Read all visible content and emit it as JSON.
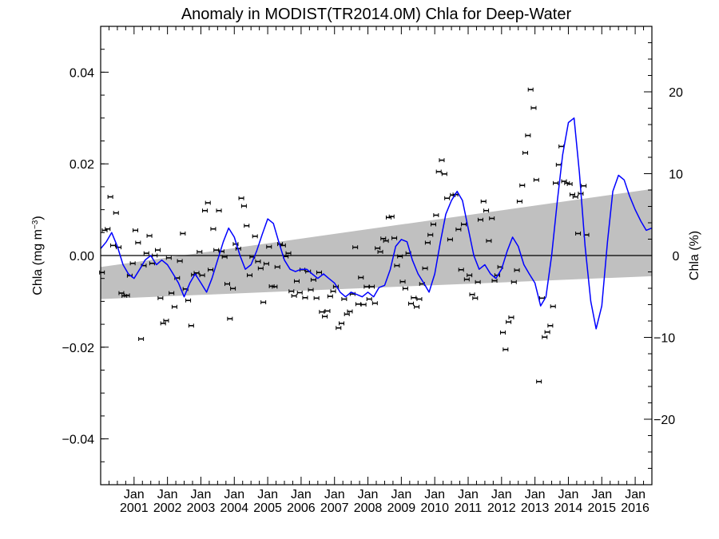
{
  "chart_data": {
    "type": "scatter",
    "title": "Anomaly in MODIST(TR2014.0M) Chla for Deep-Water",
    "ylabel_left": "Chla (mg m",
    "ylabel_left_superscript": "−3",
    "ylabel_left_close": ")",
    "ylabel_right": "Chla (%)",
    "xlabel": "",
    "xlim": [
      2000.0,
      2016.5
    ],
    "ylim": [
      -0.05,
      0.05
    ],
    "y2lim": [
      -28,
      28
    ],
    "yticks": [
      {
        "value": -0.04,
        "label": "−0.04"
      },
      {
        "value": -0.02,
        "label": "−0.02"
      },
      {
        "value": 0.0,
        "label": "0.00"
      },
      {
        "value": 0.02,
        "label": "0.02"
      },
      {
        "value": 0.04,
        "label": "0.04"
      }
    ],
    "y2ticks": [
      {
        "value": -20,
        "label": "−20"
      },
      {
        "value": -10,
        "label": "−10"
      },
      {
        "value": 0,
        "label": "0"
      },
      {
        "value": 10,
        "label": "10"
      },
      {
        "value": 20,
        "label": "20"
      }
    ],
    "xticks": [
      {
        "value": 2001,
        "month": "Jan",
        "year": "2001"
      },
      {
        "value": 2002,
        "month": "Jan",
        "year": "2002"
      },
      {
        "value": 2003,
        "month": "Jan",
        "year": "2003"
      },
      {
        "value": 2004,
        "month": "Jan",
        "year": "2004"
      },
      {
        "value": 2005,
        "month": "Jan",
        "year": "2005"
      },
      {
        "value": 2006,
        "month": "Jan",
        "year": "2006"
      },
      {
        "value": 2007,
        "month": "Jan",
        "year": "2007"
      },
      {
        "value": 2008,
        "month": "Jan",
        "year": "2008"
      },
      {
        "value": 2009,
        "month": "Jan",
        "year": "2009"
      },
      {
        "value": 2010,
        "month": "Jan",
        "year": "2010"
      },
      {
        "value": 2011,
        "month": "Jan",
        "year": "2011"
      },
      {
        "value": 2012,
        "month": "Jan",
        "year": "2012"
      },
      {
        "value": 2013,
        "month": "Jan",
        "year": "2013"
      },
      {
        "value": 2014,
        "month": "Jan",
        "year": "2014"
      },
      {
        "value": 2015,
        "month": "Jan",
        "year": "2015"
      },
      {
        "value": 2016,
        "month": "Jan",
        "year": "2016"
      }
    ],
    "trend_band": {
      "lower_start": -0.0095,
      "lower_end": -0.0045,
      "upper_start": -0.0025,
      "upper_end": 0.0145,
      "color": "#c0c0c0"
    },
    "zero_line": 0.0,
    "smooth_color": "#0000ff",
    "points_color": "#000000",
    "smooth": [
      [
        2000.0,
        0.0015
      ],
      [
        2000.17,
        0.003
      ],
      [
        2000.33,
        0.005
      ],
      [
        2000.5,
        0.002
      ],
      [
        2000.67,
        -0.002
      ],
      [
        2000.83,
        -0.004
      ],
      [
        2001.0,
        -0.005
      ],
      [
        2001.17,
        -0.003
      ],
      [
        2001.33,
        -0.001
      ],
      [
        2001.5,
        0.0
      ],
      [
        2001.67,
        -0.002
      ],
      [
        2001.83,
        -0.001
      ],
      [
        2002.0,
        -0.002
      ],
      [
        2002.17,
        -0.004
      ],
      [
        2002.33,
        -0.006
      ],
      [
        2002.5,
        -0.009
      ],
      [
        2002.67,
        -0.006
      ],
      [
        2002.83,
        -0.004
      ],
      [
        2003.0,
        -0.006
      ],
      [
        2003.17,
        -0.008
      ],
      [
        2003.33,
        -0.005
      ],
      [
        2003.5,
        -0.001
      ],
      [
        2003.67,
        0.003
      ],
      [
        2003.83,
        0.006
      ],
      [
        2004.0,
        0.004
      ],
      [
        2004.17,
        0.0
      ],
      [
        2004.33,
        -0.003
      ],
      [
        2004.5,
        -0.002
      ],
      [
        2004.67,
        0.001
      ],
      [
        2004.83,
        0.0045
      ],
      [
        2005.0,
        0.008
      ],
      [
        2005.17,
        0.007
      ],
      [
        2005.33,
        0.003
      ],
      [
        2005.5,
        -0.001
      ],
      [
        2005.67,
        -0.003
      ],
      [
        2005.83,
        -0.0035
      ],
      [
        2006.0,
        -0.003
      ],
      [
        2006.17,
        -0.003
      ],
      [
        2006.33,
        -0.004
      ],
      [
        2006.5,
        -0.005
      ],
      [
        2006.67,
        -0.004
      ],
      [
        2006.83,
        -0.005
      ],
      [
        2007.0,
        -0.006
      ],
      [
        2007.17,
        -0.008
      ],
      [
        2007.33,
        -0.009
      ],
      [
        2007.5,
        -0.008
      ],
      [
        2007.67,
        -0.0085
      ],
      [
        2007.83,
        -0.009
      ],
      [
        2008.0,
        -0.008
      ],
      [
        2008.17,
        -0.009
      ],
      [
        2008.33,
        -0.007
      ],
      [
        2008.5,
        -0.0065
      ],
      [
        2008.67,
        -0.003
      ],
      [
        2008.83,
        0.002
      ],
      [
        2009.0,
        0.0035
      ],
      [
        2009.17,
        0.003
      ],
      [
        2009.33,
        -0.001
      ],
      [
        2009.5,
        -0.004
      ],
      [
        2009.67,
        -0.006
      ],
      [
        2009.83,
        -0.008
      ],
      [
        2010.0,
        -0.004
      ],
      [
        2010.17,
        0.003
      ],
      [
        2010.33,
        0.009
      ],
      [
        2010.5,
        0.012
      ],
      [
        2010.67,
        0.014
      ],
      [
        2010.83,
        0.012
      ],
      [
        2011.0,
        0.006
      ],
      [
        2011.17,
        0.0
      ],
      [
        2011.33,
        -0.003
      ],
      [
        2011.5,
        -0.002
      ],
      [
        2011.67,
        -0.004
      ],
      [
        2011.83,
        -0.005
      ],
      [
        2012.0,
        -0.003
      ],
      [
        2012.17,
        0.001
      ],
      [
        2012.33,
        0.004
      ],
      [
        2012.5,
        0.002
      ],
      [
        2012.67,
        -0.002
      ],
      [
        2012.83,
        -0.004
      ],
      [
        2013.0,
        -0.006
      ],
      [
        2013.17,
        -0.011
      ],
      [
        2013.33,
        -0.009
      ],
      [
        2013.5,
        0.0
      ],
      [
        2013.67,
        0.012
      ],
      [
        2013.83,
        0.022
      ],
      [
        2014.0,
        0.029
      ],
      [
        2014.17,
        0.03
      ],
      [
        2014.33,
        0.018
      ],
      [
        2014.5,
        0.002
      ],
      [
        2014.67,
        -0.01
      ],
      [
        2014.83,
        -0.016
      ],
      [
        2015.0,
        -0.011
      ],
      [
        2015.17,
        0.003
      ],
      [
        2015.33,
        0.014
      ],
      [
        2015.5,
        0.0175
      ],
      [
        2015.67,
        0.0165
      ],
      [
        2015.83,
        0.013
      ],
      [
        2016.0,
        0.01
      ],
      [
        2016.17,
        0.0075
      ],
      [
        2016.33,
        0.0055
      ],
      [
        2016.5,
        0.006
      ]
    ],
    "points": [
      [
        2000.04,
        -0.0037
      ],
      [
        2000.12,
        0.0055
      ],
      [
        2000.21,
        0.0058
      ],
      [
        2000.29,
        0.0128
      ],
      [
        2000.37,
        0.0022
      ],
      [
        2000.46,
        0.0093
      ],
      [
        2000.54,
        0.0018
      ],
      [
        2000.62,
        -0.0082
      ],
      [
        2000.71,
        -0.0088
      ],
      [
        2000.79,
        -0.0087
      ],
      [
        2000.87,
        -0.0044
      ],
      [
        2000.96,
        -0.0017
      ],
      [
        2001.04,
        0.0055
      ],
      [
        2001.12,
        0.0028
      ],
      [
        2001.21,
        -0.0182
      ],
      [
        2001.29,
        -0.0022
      ],
      [
        2001.37,
        0.0005
      ],
      [
        2001.46,
        0.0043
      ],
      [
        2001.54,
        -0.0017
      ],
      [
        2001.62,
        0.0
      ],
      [
        2001.71,
        0.0012
      ],
      [
        2001.79,
        -0.0093
      ],
      [
        2001.87,
        -0.0148
      ],
      [
        2001.96,
        -0.0142
      ],
      [
        2002.04,
        -0.0005
      ],
      [
        2002.12,
        -0.0082
      ],
      [
        2002.21,
        -0.0112
      ],
      [
        2002.29,
        -0.0049
      ],
      [
        2002.37,
        -0.0012
      ],
      [
        2002.46,
        0.0048
      ],
      [
        2002.54,
        -0.0073
      ],
      [
        2002.62,
        -0.0098
      ],
      [
        2002.71,
        -0.0153
      ],
      [
        2002.79,
        -0.0042
      ],
      [
        2002.87,
        -0.0038
      ],
      [
        2002.96,
        0.0008
      ],
      [
        2003.04,
        -0.0043
      ],
      [
        2003.12,
        0.0098
      ],
      [
        2003.21,
        0.0115
      ],
      [
        2003.29,
        -0.0031
      ],
      [
        2003.37,
        0.0058
      ],
      [
        2003.46,
        0.0012
      ],
      [
        2003.54,
        0.0098
      ],
      [
        2003.62,
        0.0009
      ],
      [
        2003.71,
        -0.0003
      ],
      [
        2003.79,
        -0.0062
      ],
      [
        2003.87,
        -0.0138
      ],
      [
        2003.96,
        -0.0072
      ],
      [
        2004.04,
        0.0025
      ],
      [
        2004.12,
        0.0015
      ],
      [
        2004.21,
        0.0125
      ],
      [
        2004.29,
        0.0108
      ],
      [
        2004.37,
        0.0065
      ],
      [
        2004.46,
        -0.0043
      ],
      [
        2004.54,
        -0.0003
      ],
      [
        2004.62,
        0.0042
      ],
      [
        2004.71,
        -0.0013
      ],
      [
        2004.79,
        -0.0028
      ],
      [
        2004.87,
        -0.0102
      ],
      [
        2004.96,
        -0.0018
      ],
      [
        2005.04,
        0.0019
      ],
      [
        2005.12,
        -0.0067
      ],
      [
        2005.21,
        -0.0068
      ],
      [
        2005.29,
        -0.0025
      ],
      [
        2005.37,
        0.0025
      ],
      [
        2005.46,
        0.0022
      ],
      [
        2005.54,
        -0.0002
      ],
      [
        2005.62,
        0.0005
      ],
      [
        2005.71,
        -0.0078
      ],
      [
        2005.79,
        -0.0088
      ],
      [
        2005.87,
        -0.0056
      ],
      [
        2005.96,
        -0.0081
      ],
      [
        2006.04,
        -0.0031
      ],
      [
        2006.12,
        -0.0092
      ],
      [
        2006.21,
        -0.0035
      ],
      [
        2006.29,
        -0.0075
      ],
      [
        2006.37,
        -0.0053
      ],
      [
        2006.46,
        -0.0093
      ],
      [
        2006.54,
        -0.0037
      ],
      [
        2006.62,
        -0.0123
      ],
      [
        2006.71,
        -0.0133
      ],
      [
        2006.79,
        -0.0121
      ],
      [
        2006.87,
        -0.0089
      ],
      [
        2006.96,
        -0.0078
      ],
      [
        2007.04,
        -0.0068
      ],
      [
        2007.12,
        -0.0158
      ],
      [
        2007.21,
        -0.0148
      ],
      [
        2007.29,
        -0.0095
      ],
      [
        2007.37,
        -0.0128
      ],
      [
        2007.46,
        -0.0122
      ],
      [
        2007.54,
        -0.0084
      ],
      [
        2007.62,
        0.0018
      ],
      [
        2007.71,
        -0.0106
      ],
      [
        2007.79,
        -0.0048
      ],
      [
        2007.87,
        -0.0107
      ],
      [
        2007.96,
        -0.0068
      ],
      [
        2008.04,
        -0.0095
      ],
      [
        2008.12,
        -0.0068
      ],
      [
        2008.21,
        -0.0104
      ],
      [
        2008.29,
        0.0016
      ],
      [
        2008.37,
        0.0008
      ],
      [
        2008.46,
        0.0037
      ],
      [
        2008.54,
        0.0032
      ],
      [
        2008.62,
        0.0083
      ],
      [
        2008.71,
        0.0085
      ],
      [
        2008.79,
        0.0038
      ],
      [
        2008.87,
        -0.0022
      ],
      [
        2008.96,
        -0.0002
      ],
      [
        2009.04,
        -0.0057
      ],
      [
        2009.12,
        -0.0072
      ],
      [
        2009.21,
        0.0005
      ],
      [
        2009.29,
        -0.0105
      ],
      [
        2009.37,
        -0.0092
      ],
      [
        2009.46,
        -0.0112
      ],
      [
        2009.54,
        -0.0095
      ],
      [
        2009.62,
        -0.0062
      ],
      [
        2009.71,
        -0.0028
      ],
      [
        2009.79,
        0.0028
      ],
      [
        2009.87,
        0.0045
      ],
      [
        2009.96,
        0.0068
      ],
      [
        2010.04,
        0.0088
      ],
      [
        2010.12,
        0.0183
      ],
      [
        2010.21,
        0.0208
      ],
      [
        2010.29,
        0.0178
      ],
      [
        2010.37,
        0.0125
      ],
      [
        2010.46,
        0.0035
      ],
      [
        2010.54,
        0.0132
      ],
      [
        2010.62,
        0.0133
      ],
      [
        2010.71,
        0.0057
      ],
      [
        2010.79,
        -0.0031
      ],
      [
        2010.87,
        0.0068
      ],
      [
        2010.96,
        -0.0052
      ],
      [
        2011.04,
        -0.0043
      ],
      [
        2011.12,
        -0.0085
      ],
      [
        2011.21,
        -0.0093
      ],
      [
        2011.29,
        -0.0058
      ],
      [
        2011.37,
        0.0078
      ],
      [
        2011.46,
        0.0118
      ],
      [
        2011.54,
        0.0098
      ],
      [
        2011.62,
        0.0032
      ],
      [
        2011.71,
        0.0081
      ],
      [
        2011.79,
        -0.0055
      ],
      [
        2011.87,
        -0.0043
      ],
      [
        2011.96,
        -0.0025
      ],
      [
        2012.04,
        -0.0168
      ],
      [
        2012.12,
        -0.0205
      ],
      [
        2012.21,
        -0.0145
      ],
      [
        2012.29,
        -0.0135
      ],
      [
        2012.37,
        -0.0058
      ],
      [
        2012.46,
        -0.0032
      ],
      [
        2012.54,
        0.0118
      ],
      [
        2012.62,
        0.0153
      ],
      [
        2012.71,
        0.0224
      ],
      [
        2012.79,
        0.0262
      ],
      [
        2012.87,
        0.0362
      ],
      [
        2012.96,
        0.0322
      ],
      [
        2013.04,
        0.0165
      ],
      [
        2013.12,
        -0.0275
      ],
      [
        2013.21,
        -0.0093
      ],
      [
        2013.29,
        -0.0178
      ],
      [
        2013.37,
        -0.0167
      ],
      [
        2013.46,
        -0.0153
      ],
      [
        2013.54,
        -0.0111
      ],
      [
        2013.62,
        0.0158
      ],
      [
        2013.71,
        0.0198
      ],
      [
        2013.79,
        0.0238
      ],
      [
        2013.87,
        0.0162
      ],
      [
        2013.96,
        0.0158
      ],
      [
        2014.04,
        0.0156
      ],
      [
        2014.12,
        0.0133
      ],
      [
        2014.21,
        0.0128
      ],
      [
        2014.29,
        0.0048
      ],
      [
        2014.37,
        0.0135
      ],
      [
        2014.46,
        0.0152
      ],
      [
        2014.54,
        0.0045
      ]
    ]
  }
}
